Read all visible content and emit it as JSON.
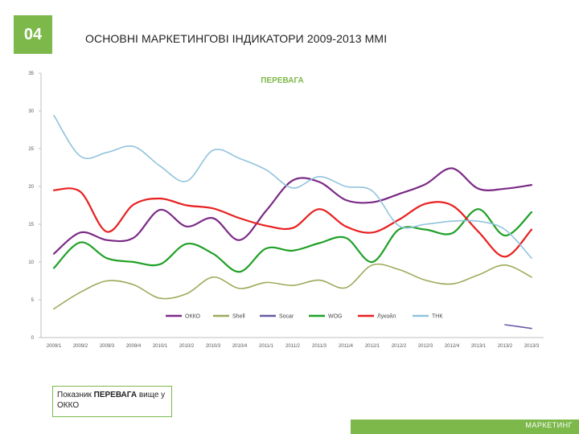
{
  "slide": {
    "number": "04",
    "title": "ОСНОВНІ МАРКЕТИНГОВІ ІНДИКАТОРИ 2009-2013 ММІ"
  },
  "callout": {
    "text_before": "Показник ",
    "highlight": "ПЕРЕВАГА",
    "text_after": " вище у ОККО"
  },
  "footer": {
    "label": "МАРКЕТИНГ"
  },
  "chart_data": {
    "type": "line",
    "title": "ПЕРЕВАГА",
    "xlabel": "",
    "ylabel": "",
    "ylim": [
      0,
      35
    ],
    "yticks": [
      0,
      5,
      10,
      15,
      20,
      25,
      30,
      35
    ],
    "grid": false,
    "legend_position": "bottom",
    "categories": [
      "2009/1",
      "2009/2",
      "2009/3",
      "2009/4",
      "2010/1",
      "2010/2",
      "2010/3",
      "2010/4",
      "2011/1",
      "2011/2",
      "2011/3",
      "2011/4",
      "2012/1",
      "2012/2",
      "2012/3",
      "2012/4",
      "2013/1",
      "2013/2",
      "2013/3"
    ],
    "series": [
      {
        "name": "ОККО",
        "color": "#7b2a86",
        "values": [
          11.1,
          13.9,
          12.9,
          13.2,
          16.9,
          14.7,
          15.8,
          12.9,
          16.8,
          20.8,
          20.6,
          18.2,
          17.9,
          19.0,
          20.3,
          22.4,
          19.7,
          19.7,
          20.2
        ]
      },
      {
        "name": "Shell",
        "color": "#9bab5a",
        "values": [
          3.8,
          6.0,
          7.5,
          7.0,
          5.2,
          5.8,
          8.0,
          6.5,
          7.3,
          6.9,
          7.6,
          6.6,
          9.6,
          9.0,
          7.6,
          7.1,
          8.3,
          9.6,
          8.0
        ]
      },
      {
        "name": "Socar",
        "color": "#6b5aa4",
        "values": [
          null,
          null,
          null,
          null,
          null,
          null,
          null,
          null,
          null,
          null,
          null,
          null,
          null,
          null,
          null,
          null,
          null,
          1.7,
          1.2
        ]
      },
      {
        "name": "WOG",
        "color": "#1fa026",
        "values": [
          9.2,
          12.6,
          10.5,
          10.0,
          9.7,
          12.4,
          11.1,
          8.7,
          11.8,
          11.5,
          12.5,
          13.2,
          10.0,
          14.3,
          14.3,
          13.8,
          17.0,
          13.5,
          16.6
        ]
      },
      {
        "name": "Лукойл",
        "color": "#e8201f",
        "values": [
          19.5,
          19.3,
          14.0,
          17.6,
          18.4,
          17.5,
          17.1,
          15.8,
          14.8,
          14.5,
          17.0,
          14.7,
          13.9,
          15.6,
          17.7,
          17.5,
          14.0,
          10.7,
          14.3
        ]
      },
      {
        "name": "ТНК",
        "color": "#91c3dd",
        "values": [
          29.4,
          24.0,
          24.5,
          25.3,
          22.7,
          20.7,
          24.8,
          23.7,
          22.2,
          19.8,
          21.3,
          20.0,
          19.4,
          14.8,
          15.0,
          15.4,
          15.4,
          14.3,
          10.5
        ]
      }
    ]
  }
}
